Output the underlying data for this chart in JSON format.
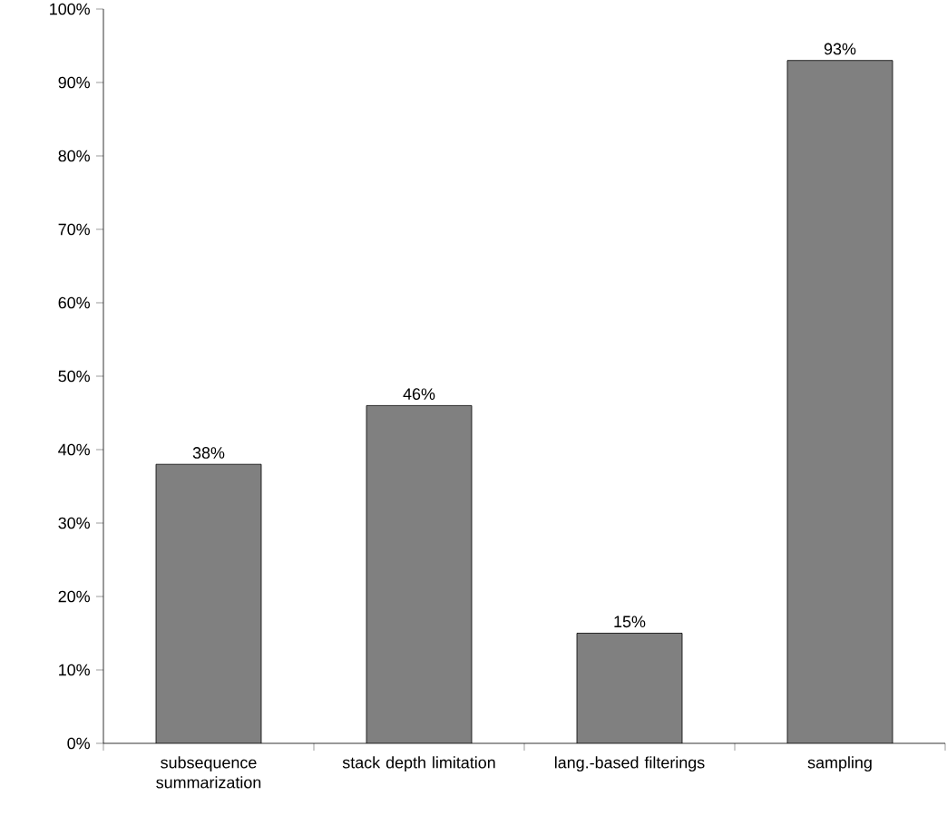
{
  "chart_data": {
    "type": "bar",
    "categories": [
      "subsequence summarization",
      "stack depth limitation",
      "lang.-based filterings",
      "sampling"
    ],
    "values": [
      38,
      46,
      15,
      93
    ],
    "value_labels": [
      "38%",
      "46%",
      "15%",
      "93%"
    ],
    "color": "#808080",
    "ylim": [
      0,
      100
    ],
    "yticks": [
      {
        "value": 0,
        "label": "0%"
      },
      {
        "value": 10,
        "label": "10%"
      },
      {
        "value": 20,
        "label": "20%"
      },
      {
        "value": 30,
        "label": "30%"
      },
      {
        "value": 40,
        "label": "40%"
      },
      {
        "value": 50,
        "label": "50%"
      },
      {
        "value": 60,
        "label": "60%"
      },
      {
        "value": 70,
        "label": "70%"
      },
      {
        "value": 80,
        "label": "80%"
      },
      {
        "value": 90,
        "label": "90%"
      },
      {
        "value": 100,
        "label": "100%"
      }
    ],
    "grid": false
  }
}
